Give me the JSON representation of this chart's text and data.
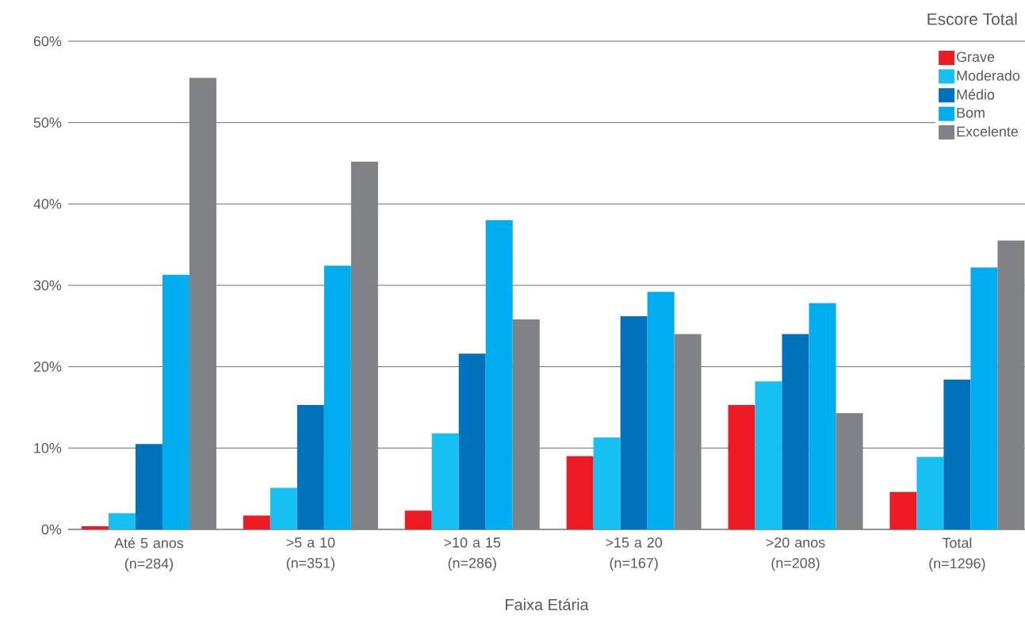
{
  "chart_data": {
    "type": "bar",
    "xlabel": "Faixa Etária",
    "legend_title": "Escore Total",
    "categories": [
      "Até 5 anos (n=284)",
      ">5 a 10 (n=351)",
      ">10 a 15 (n=286)",
      ">15 a 20 (n=167)",
      ">20 anos (n=208)",
      "Total (n=1296)"
    ],
    "series": [
      {
        "name": "Grave",
        "color": "#ed1c24",
        "values": [
          0.4,
          1.7,
          2.3,
          9.0,
          15.3,
          4.6
        ]
      },
      {
        "name": "Moderado",
        "color": "#17c0f2",
        "values": [
          2.0,
          5.1,
          11.8,
          11.3,
          18.2,
          8.9
        ]
      },
      {
        "name": "Médio",
        "color": "#0071bb",
        "values": [
          10.5,
          15.3,
          21.6,
          26.2,
          24.0,
          18.4
        ]
      },
      {
        "name": "Bom",
        "color": "#00aeef",
        "values": [
          31.3,
          32.4,
          38.0,
          29.2,
          27.8,
          32.2
        ]
      },
      {
        "name": "Excelente",
        "color": "#818286",
        "values": [
          55.5,
          45.2,
          25.8,
          24.0,
          14.3,
          35.5
        ]
      }
    ],
    "ylim": [
      0,
      60
    ],
    "yticks": [
      {
        "value": 0,
        "label": "0%"
      },
      {
        "value": 10,
        "label": "10%"
      },
      {
        "value": 20,
        "label": "20%"
      },
      {
        "value": 30,
        "label": "30%"
      },
      {
        "value": 40,
        "label": "40%"
      },
      {
        "value": 50,
        "label": "50%"
      },
      {
        "value": 60,
        "label": "60%"
      }
    ],
    "grid": "y",
    "legend": "top right"
  }
}
